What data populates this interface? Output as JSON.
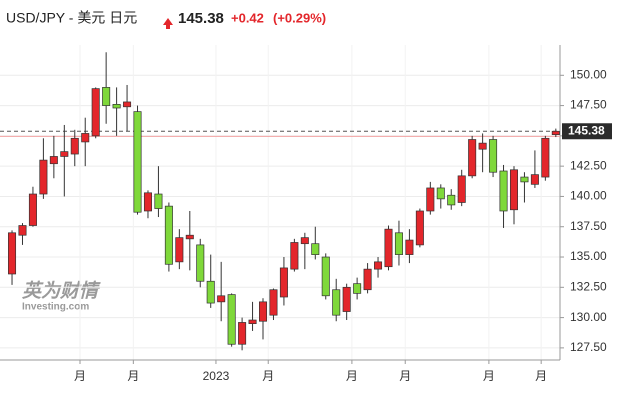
{
  "chart_data": {
    "type": "candlestick",
    "title": "USD/JPY - 美元 日元",
    "price": "145.38",
    "change": "+0.42",
    "change_pct": "(+0.29%)",
    "watermark": "英为财情",
    "watermark_sub": "Investing.com",
    "last_price": {
      "value": 145.38,
      "label": "145.38"
    },
    "prev_close": 144.96,
    "up_color": "#e3262b",
    "down_color": "#7fd83a",
    "open": [
      133.6,
      136.8,
      137.6,
      140.2,
      142.7,
      143.3,
      143.5,
      144.5,
      145.0,
      149.0,
      147.6,
      147.4,
      147.0,
      138.8,
      140.2,
      139.2,
      134.6,
      136.5,
      136.0,
      133.0,
      131.3,
      131.9,
      127.8,
      129.5,
      129.7,
      130.2,
      131.7,
      134.0,
      136.1,
      136.1,
      135.0,
      132.3,
      130.5,
      132.8,
      132.3,
      134.0,
      134.2,
      137.0,
      135.2,
      136.0,
      138.8,
      140.7,
      140.1,
      139.5,
      141.7,
      143.9,
      144.7,
      142.1,
      138.9,
      141.6,
      141.0,
      141.6,
      145.1
    ],
    "high": [
      137.2,
      137.8,
      140.8,
      144.8,
      145.0,
      145.9,
      145.5,
      146.5,
      149.0,
      151.9,
      149.0,
      149.2,
      147.5,
      140.5,
      142.5,
      139.5,
      137.3,
      138.8,
      136.5,
      135.2,
      134.6,
      132.0,
      130.0,
      131.3,
      131.6,
      132.4,
      135.0,
      136.5,
      137.0,
      137.5,
      135.3,
      133.2,
      132.8,
      133.3,
      134.5,
      135.0,
      137.6,
      138.0,
      137.3,
      139.0,
      141.2,
      141.0,
      140.6,
      142.2,
      145.0,
      145.2,
      145.0,
      142.6,
      142.5,
      142.0,
      143.8,
      145.0,
      145.6
    ],
    "low": [
      132.7,
      136.0,
      137.5,
      139.8,
      141.5,
      140.0,
      142.5,
      142.5,
      144.8,
      146.0,
      145.0,
      145.4,
      138.5,
      138.2,
      138.3,
      133.8,
      134.0,
      133.9,
      132.5,
      130.8,
      129.7,
      127.6,
      127.3,
      128.9,
      128.2,
      129.8,
      131.0,
      133.8,
      134.0,
      134.8,
      131.5,
      129.7,
      129.8,
      131.5,
      132.0,
      133.3,
      133.9,
      134.3,
      134.5,
      135.8,
      138.5,
      139.0,
      138.9,
      139.2,
      141.5,
      142.0,
      141.6,
      137.4,
      137.7,
      139.5,
      140.7,
      141.3,
      144.9
    ],
    "close": [
      137.0,
      137.6,
      140.2,
      143.0,
      143.3,
      143.7,
      144.8,
      145.2,
      148.9,
      147.5,
      147.3,
      147.8,
      138.7,
      140.3,
      139.0,
      134.4,
      136.6,
      136.8,
      133.0,
      131.2,
      131.8,
      127.8,
      129.6,
      129.8,
      131.3,
      132.3,
      134.1,
      136.2,
      136.6,
      135.2,
      131.8,
      130.2,
      132.5,
      132.0,
      134.0,
      134.6,
      137.3,
      135.2,
      136.4,
      138.8,
      140.7,
      139.8,
      139.3,
      141.7,
      144.7,
      144.4,
      142.0,
      138.8,
      142.2,
      141.2,
      141.8,
      144.8,
      145.38
    ],
    "xlim": [
      -1.15,
      52.4
    ],
    "xticks": [
      {
        "value": 6.5,
        "label": "月"
      },
      {
        "value": 11.6,
        "label": "月"
      },
      {
        "value": 19.5,
        "label": "2023"
      },
      {
        "value": 24.5,
        "label": "月"
      },
      {
        "value": 32.5,
        "label": "月"
      },
      {
        "value": 37.6,
        "label": "月"
      },
      {
        "value": 45.6,
        "label": "月"
      },
      {
        "value": 50.6,
        "label": "月"
      }
    ],
    "ylim": [
      126.5,
      152.5
    ],
    "yticks": [
      {
        "value": 127.5,
        "label": "127.50"
      },
      {
        "value": 130,
        "label": "130.00"
      },
      {
        "value": 132.5,
        "label": "132.50"
      },
      {
        "value": 135,
        "label": "135.00"
      },
      {
        "value": 137.5,
        "label": "137.50"
      },
      {
        "value": 140,
        "label": "140.00"
      },
      {
        "value": 142.5,
        "label": "142.50"
      },
      {
        "value": 145,
        "label": "145.00"
      },
      {
        "value": 147.5,
        "label": "147.50"
      },
      {
        "value": 150,
        "label": "150.00"
      }
    ],
    "grid": true
  }
}
